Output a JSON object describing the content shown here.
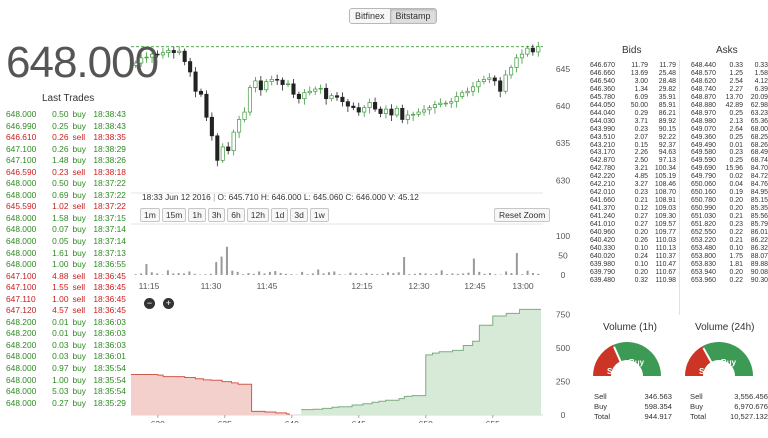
{
  "exchanges": [
    {
      "label": "Bitfinex",
      "active": false
    },
    {
      "label": "Bitstamp",
      "active": true
    }
  ],
  "current_price": "648.000",
  "last_trades_title": "Last Trades",
  "trades": [
    {
      "price": "648.000",
      "amount": "0.50",
      "side": "buy",
      "time": "18:38:43"
    },
    {
      "price": "646.990",
      "amount": "0.25",
      "side": "buy",
      "time": "18:38:43"
    },
    {
      "price": "646.610",
      "amount": "0.26",
      "side": "sell",
      "time": "18:38:35"
    },
    {
      "price": "647.100",
      "amount": "0.26",
      "side": "buy",
      "time": "18:38:29"
    },
    {
      "price": "647.100",
      "amount": "1.48",
      "side": "buy",
      "time": "18:38:26"
    },
    {
      "price": "646.590",
      "amount": "0.23",
      "side": "sell",
      "time": "18:38:18"
    },
    {
      "price": "648.000",
      "amount": "0.50",
      "side": "buy",
      "time": "18:37:22"
    },
    {
      "price": "648.000",
      "amount": "0.69",
      "side": "buy",
      "time": "18:37:22"
    },
    {
      "price": "645.590",
      "amount": "1.02",
      "side": "sell",
      "time": "18:37:22"
    },
    {
      "price": "648.000",
      "amount": "1.58",
      "side": "buy",
      "time": "18:37:15"
    },
    {
      "price": "648.000",
      "amount": "0.07",
      "side": "buy",
      "time": "18:37:14"
    },
    {
      "price": "648.000",
      "amount": "0.05",
      "side": "buy",
      "time": "18:37:14"
    },
    {
      "price": "648.000",
      "amount": "1.61",
      "side": "buy",
      "time": "18:37:13"
    },
    {
      "price": "648.000",
      "amount": "1.00",
      "side": "buy",
      "time": "18:36:55"
    },
    {
      "price": "647.100",
      "amount": "4.88",
      "side": "sell",
      "time": "18:36:45"
    },
    {
      "price": "647.100",
      "amount": "1.55",
      "side": "sell",
      "time": "18:36:45"
    },
    {
      "price": "647.110",
      "amount": "1.00",
      "side": "sell",
      "time": "18:36:45"
    },
    {
      "price": "647.120",
      "amount": "4.57",
      "side": "sell",
      "time": "18:36:45"
    },
    {
      "price": "648.200",
      "amount": "0.01",
      "side": "buy",
      "time": "18:36:03"
    },
    {
      "price": "648.200",
      "amount": "0.01",
      "side": "buy",
      "time": "18:36:03"
    },
    {
      "price": "648.200",
      "amount": "0.03",
      "side": "buy",
      "time": "18:36:03"
    },
    {
      "price": "648.000",
      "amount": "0.03",
      "side": "buy",
      "time": "18:36:01"
    },
    {
      "price": "648.000",
      "amount": "0.97",
      "side": "buy",
      "time": "18:35:54"
    },
    {
      "price": "648.000",
      "amount": "1.00",
      "side": "buy",
      "time": "18:35:54"
    },
    {
      "price": "648.000",
      "amount": "5.03",
      "side": "buy",
      "time": "18:35:54"
    },
    {
      "price": "648.000",
      "amount": "0.27",
      "side": "buy",
      "time": "18:35:29"
    }
  ],
  "ohlc": {
    "time": "18:33 Jun 12 2016",
    "O": "645.710",
    "H": "646.000",
    "L": "645.060",
    "C": "646.000",
    "V": "45.12"
  },
  "range_buttons": [
    "1m",
    "15m",
    "1h",
    "3h",
    "6h",
    "12h",
    "1d",
    "3d",
    "1w"
  ],
  "reset_zoom_label": "Reset Zoom",
  "colors": {
    "buy": "#2e8b22",
    "sell": "#cc1d1d",
    "candle_up": "#3c9a3c",
    "candle_down": "#222222",
    "depth_bid_fill": "#f4d0cc",
    "depth_bid_line": "#d05a4c",
    "depth_ask_fill": "#d7ead8",
    "depth_ask_line": "#7cad7f",
    "gauge_sell": "#cc3526",
    "gauge_buy": "#3c9a55"
  },
  "chart_data": [
    {
      "type": "candlestick",
      "title": "",
      "time_ticks": [
        "11:15",
        "11:30",
        "11:45",
        "12:15",
        "12:30",
        "12:45",
        "13:00"
      ],
      "y_ticks": [
        645,
        640,
        635,
        630
      ],
      "ylim": [
        628.3,
        648.5
      ],
      "last_price": 648.0,
      "close_series": [
        645.8,
        646.5,
        646.6,
        647.0,
        646.9,
        647.2,
        647.5,
        647.2,
        647.4,
        646.0,
        644.6,
        642.0,
        641.6,
        638.5,
        636.0,
        632.7,
        634.5,
        634.0,
        636.5,
        638.2,
        639.2,
        642.5,
        643.4,
        642.2,
        643.3,
        643.6,
        643.5,
        642.9,
        643.0,
        641.6,
        641.0,
        641.8,
        642.0,
        642.3,
        642.4,
        641.0,
        641.4,
        641.2,
        640.6,
        640.0,
        639.8,
        639.2,
        639.8,
        640.5,
        639.6,
        639.0,
        639.6,
        638.8,
        639.7,
        638.2,
        638.8,
        638.9,
        639.2,
        639.5,
        639.8,
        640.2,
        640.4,
        640.4,
        640.6,
        641.3,
        641.8,
        642.0,
        642.6,
        643.3,
        643.6,
        643.8,
        643.4,
        642.0,
        644.2,
        645.2,
        646.5,
        647.0,
        647.8,
        647.3,
        648.0
      ]
    },
    {
      "type": "bar",
      "title": "Volume",
      "y_ticks": [
        100,
        50,
        0
      ],
      "ylim": [
        0,
        120
      ],
      "values": [
        2,
        4,
        28,
        7,
        4,
        1,
        12,
        4,
        5,
        4,
        9,
        3,
        1,
        2,
        3,
        33,
        47,
        72,
        11,
        8,
        2,
        5,
        3,
        9,
        4,
        8,
        10,
        5,
        3,
        2,
        1,
        8,
        2,
        4,
        14,
        4,
        7,
        9,
        2,
        1,
        6,
        4,
        2,
        5,
        3,
        2,
        3,
        7,
        5,
        7,
        46,
        2,
        3,
        5,
        4,
        2,
        4,
        12,
        2,
        4,
        3,
        4,
        6,
        42,
        8,
        3,
        5,
        2,
        1,
        9,
        5,
        56,
        2,
        11,
        5,
        3
      ]
    },
    {
      "type": "area",
      "title": "Depth",
      "x_ticks": [
        630,
        635,
        640,
        645,
        650,
        655
      ],
      "xlim": [
        628,
        658.6
      ],
      "y_ticks": [
        750,
        500,
        250,
        0
      ],
      "ylim": [
        0,
        800
      ],
      "bids": [
        [
          628,
          303
        ],
        [
          630,
          298
        ],
        [
          630.4,
          287
        ],
        [
          631,
          287
        ],
        [
          632,
          280
        ],
        [
          632.8,
          271
        ],
        [
          633.4,
          263
        ],
        [
          634,
          260
        ],
        [
          634.8,
          250
        ],
        [
          635.5,
          240
        ],
        [
          636,
          230
        ],
        [
          637,
          27
        ],
        [
          638,
          22
        ],
        [
          638.8,
          16
        ],
        [
          639.6,
          8
        ],
        [
          639.8,
          0
        ]
      ],
      "asks": [
        [
          648.2,
          36
        ],
        [
          649,
          40
        ],
        [
          640.7,
          40
        ],
        [
          641.6,
          43
        ],
        [
          642.3,
          50
        ],
        [
          643,
          58
        ],
        [
          643.5,
          62
        ],
        [
          644.5,
          75
        ],
        [
          645.3,
          84
        ],
        [
          646,
          95
        ],
        [
          646.5,
          103
        ],
        [
          647,
          110
        ],
        [
          648,
          122
        ],
        [
          648.4,
          138
        ],
        [
          648.6,
          140
        ],
        [
          649,
          145
        ],
        [
          650,
          450
        ],
        [
          650.5,
          463
        ],
        [
          651,
          473
        ],
        [
          652,
          483
        ],
        [
          652.8,
          520
        ],
        [
          653.5,
          551
        ],
        [
          654,
          671
        ],
        [
          655,
          740
        ],
        [
          656,
          760
        ],
        [
          657,
          790
        ],
        [
          658.6,
          790
        ]
      ]
    }
  ],
  "bids_title": "Bids",
  "bids": [
    [
      "646.670",
      "11.79",
      "11.79"
    ],
    [
      "646.660",
      "13.69",
      "25.48"
    ],
    [
      "646.540",
      "3.00",
      "28.48"
    ],
    [
      "646.360",
      "1.34",
      "29.82"
    ],
    [
      "645.780",
      "6.09",
      "35.91"
    ],
    [
      "644.050",
      "50.00",
      "85.91"
    ],
    [
      "644.040",
      "0.29",
      "86.21"
    ],
    [
      "644.030",
      "3.71",
      "89.92"
    ],
    [
      "643.990",
      "0.23",
      "90.15"
    ],
    [
      "643.510",
      "2.07",
      "92.22"
    ],
    [
      "643.210",
      "0.15",
      "92.37"
    ],
    [
      "643.170",
      "2.26",
      "94.63"
    ],
    [
      "642.870",
      "2.50",
      "97.13"
    ],
    [
      "642.780",
      "3.21",
      "100.34"
    ],
    [
      "642.220",
      "4.85",
      "105.19"
    ],
    [
      "642.210",
      "3.27",
      "108.46"
    ],
    [
      "642.010",
      "0.23",
      "108.70"
    ],
    [
      "641.660",
      "0.21",
      "108.91"
    ],
    [
      "641.370",
      "0.12",
      "109.03"
    ],
    [
      "641.240",
      "0.27",
      "109.30"
    ],
    [
      "641.010",
      "0.27",
      "109.57"
    ],
    [
      "640.960",
      "0.20",
      "109.77"
    ],
    [
      "640.420",
      "0.26",
      "110.03"
    ],
    [
      "640.330",
      "0.10",
      "110.13"
    ],
    [
      "640.020",
      "0.24",
      "110.37"
    ],
    [
      "639.980",
      "0.10",
      "110.47"
    ],
    [
      "639.790",
      "0.20",
      "110.67"
    ],
    [
      "639.480",
      "0.32",
      "110.98"
    ]
  ],
  "asks_title": "Asks",
  "asks": [
    [
      "648.440",
      "0.33",
      "0.33"
    ],
    [
      "648.570",
      "1.25",
      "1.58"
    ],
    [
      "648.620",
      "2.54",
      "4.12"
    ],
    [
      "648.740",
      "2.27",
      "6.39"
    ],
    [
      "648.870",
      "13.70",
      "20.09"
    ],
    [
      "648.880",
      "42.89",
      "62.98"
    ],
    [
      "648.970",
      "0.25",
      "63.23"
    ],
    [
      "648.980",
      "2.13",
      "65.36"
    ],
    [
      "649.070",
      "2.64",
      "68.00"
    ],
    [
      "649.360",
      "0.25",
      "68.25"
    ],
    [
      "649.490",
      "0.01",
      "68.26"
    ],
    [
      "649.580",
      "0.23",
      "68.49"
    ],
    [
      "649.590",
      "0.25",
      "68.74"
    ],
    [
      "649.690",
      "15.96",
      "84.70"
    ],
    [
      "649.790",
      "0.02",
      "84.72"
    ],
    [
      "650.060",
      "0.04",
      "84.76"
    ],
    [
      "650.160",
      "0.19",
      "84.95"
    ],
    [
      "650.780",
      "0.20",
      "85.15"
    ],
    [
      "650.990",
      "0.20",
      "85.35"
    ],
    [
      "651.030",
      "0.21",
      "85.56"
    ],
    [
      "651.820",
      "0.23",
      "85.79"
    ],
    [
      "652.550",
      "0.22",
      "86.01"
    ],
    [
      "653.220",
      "0.21",
      "86.22"
    ],
    [
      "653.480",
      "0.10",
      "86.32"
    ],
    [
      "653.800",
      "1.75",
      "88.07"
    ],
    [
      "653.830",
      "1.81",
      "89.88"
    ],
    [
      "653.940",
      "0.20",
      "90.08"
    ],
    [
      "653.960",
      "0.22",
      "90.30"
    ]
  ],
  "volume_1h": {
    "title": "Volume (1h)",
    "sell_label": "Sell",
    "buy_label": "Buy",
    "sell": "346.563",
    "buy": "598.354",
    "total": "944.917",
    "sell_fraction": 0.367,
    "total_label": "Total"
  },
  "volume_24h": {
    "title": "Volume (24h)",
    "sell_label": "Sell",
    "buy_label": "Buy",
    "sell": "3,556.456",
    "buy": "6,970.676",
    "total": "10,527.132",
    "sell_fraction": 0.338,
    "total_label": "Total"
  }
}
